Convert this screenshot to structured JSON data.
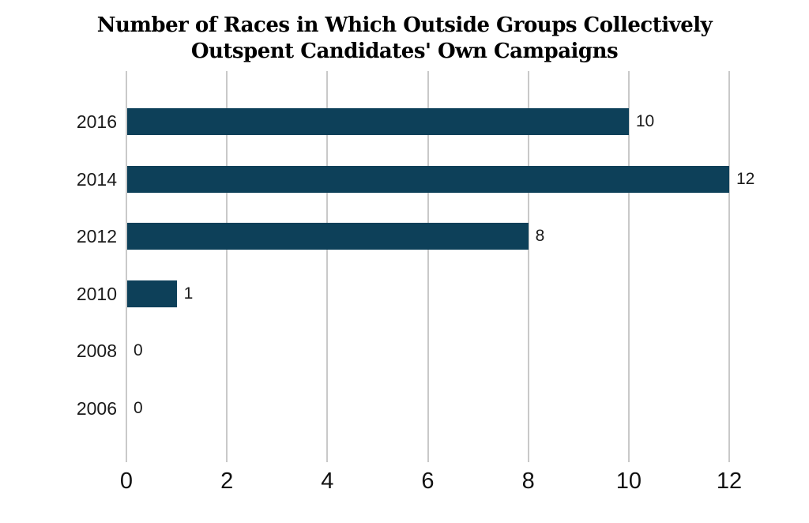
{
  "chart_data": {
    "type": "bar",
    "orientation": "horizontal",
    "title_lines": [
      "Number of Races in Which Outside Groups Collectively",
      "Outspent Candidates' Own Campaigns"
    ],
    "categories": [
      "2016",
      "2014",
      "2012",
      "2010",
      "2008",
      "2006"
    ],
    "values": [
      10,
      12,
      8,
      1,
      0,
      0
    ],
    "value_labels": [
      "10",
      "12",
      "8",
      "1",
      "0",
      "0"
    ],
    "x_ticks": [
      "0",
      "2",
      "4",
      "6",
      "8",
      "10",
      "12"
    ],
    "xlim": [
      0,
      12
    ],
    "xlabel": "",
    "ylabel": "",
    "grid": true,
    "legend": false,
    "bar_color": "#0d4059",
    "gridline_color": "#c9c9c9",
    "text_color": "#1a1a1a",
    "background_color": "#ffffff"
  }
}
